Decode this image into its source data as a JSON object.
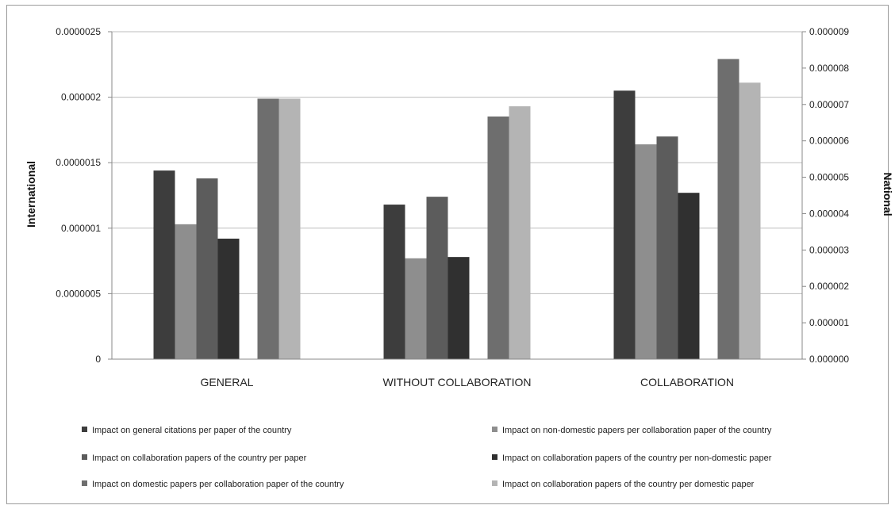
{
  "chart_data": {
    "type": "bar",
    "title": "",
    "xlabel": "",
    "ylabel": "International",
    "y2label": "National",
    "categories": [
      "GENERAL",
      "WITHOUT COLLABORATION",
      "COLLABORATION"
    ],
    "ylim": [
      0,
      2.5e-06
    ],
    "y2lim": [
      0,
      9e-06
    ],
    "yticks": [
      "0",
      "0.0000005",
      "0.000001",
      "0.0000015",
      "0.000002",
      "0.0000025"
    ],
    "y2ticks": [
      "0.000000",
      "0.000001",
      "0.000002",
      "0.000003",
      "0.000004",
      "0.000005",
      "0.000006",
      "0.000007",
      "0.000008",
      "0.000009"
    ],
    "grid": true,
    "legend_position": "bottom",
    "series": [
      {
        "name": "Impact on general citations per paper of the country",
        "axis": "left",
        "color": "#3d3d3d",
        "values": [
          1.44e-06,
          1.18e-06,
          2.05e-06
        ]
      },
      {
        "name": "Impact on non-domestic papers per collaboration paper of the country",
        "axis": "left",
        "color": "#8e8e8e",
        "values": [
          1.03e-06,
          7.7e-07,
          1.64e-06
        ]
      },
      {
        "name": "Impact on collaboration papers of the country per paper",
        "axis": "left",
        "color": "#5c5c5c",
        "values": [
          1.38e-06,
          1.24e-06,
          1.7e-06
        ]
      },
      {
        "name": "Impact on collaboration papers of the country per non-domestic paper",
        "axis": "left",
        "color": "#303030",
        "values": [
          9.2e-07,
          7.8e-07,
          1.27e-06
        ]
      },
      {
        "name": "Impact on domestic papers per collaboration paper of the country",
        "axis": "right",
        "color": "#6e6e6e",
        "values": [
          7.16e-06,
          6.67e-06,
          8.25e-06
        ]
      },
      {
        "name": "Impact on collaboration papers of the country per domestic paper",
        "axis": "right",
        "color": "#b4b4b4",
        "values": [
          7.16e-06,
          6.95e-06,
          7.6e-06
        ]
      }
    ]
  }
}
